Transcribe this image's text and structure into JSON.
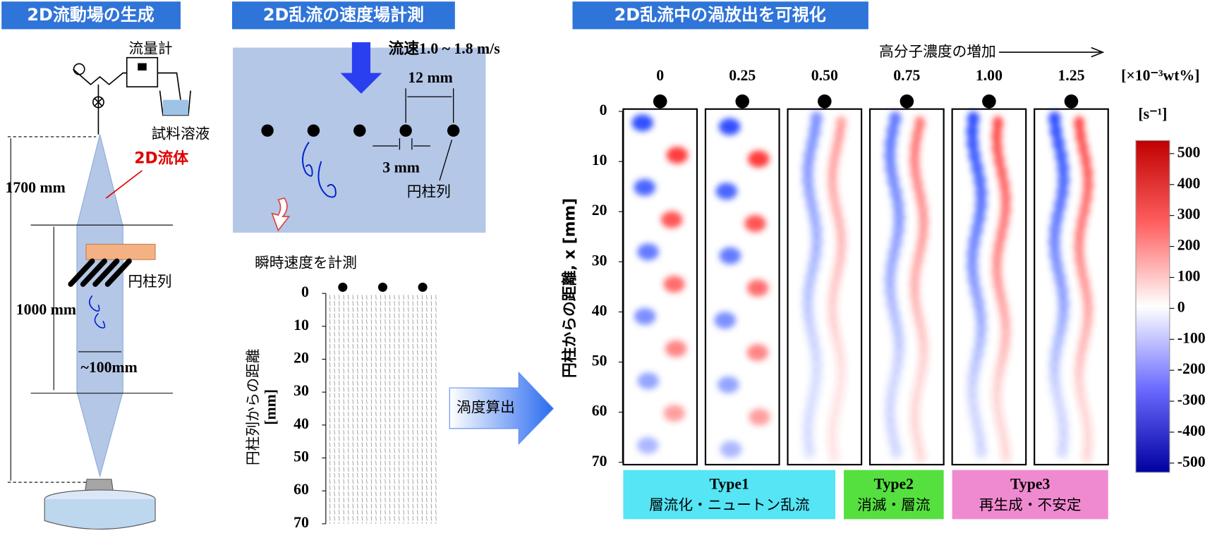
{
  "generation": {
    "title": "2D流動場の生成",
    "flowmeter": "流量計",
    "sample": "試料溶液",
    "fluid": "2D流体",
    "height": "1700 mm",
    "section": "1000 mm",
    "cylinders": "円柱列",
    "width": "~100mm"
  },
  "measurement": {
    "title": "2D乱流の速度場計測",
    "speed": "流速1.0 ~ 1.8 m/s",
    "spacing": "12 mm",
    "diameter": "3 mm",
    "cylinders": "円柱列",
    "caption": "瞬時速度を計測",
    "y_label": [
      "円柱列からの距離",
      "[mm]"
    ],
    "y_ticks": [
      0,
      10,
      20,
      30,
      40,
      50,
      60,
      70
    ],
    "arrow": "渦度算出"
  },
  "visualization": {
    "title": "2D乱流中の渦放出を可視化",
    "trend": "高分子濃度の増加",
    "concentrations": [
      "0",
      "0.25",
      "0.50",
      "0.75",
      "1.00",
      "1.25"
    ],
    "unit": "[×10⁻³wt%]",
    "y_label": "円柱からの距離, x [mm]",
    "y_ticks": [
      0,
      10,
      20,
      30,
      40,
      50,
      60,
      70
    ],
    "colorbar_unit": "[s⁻¹]",
    "colorbar_ticks": [
      500,
      400,
      300,
      200,
      100,
      0,
      -100,
      -200,
      -300,
      -400,
      -500
    ],
    "types": [
      {
        "name": "Type1",
        "desc": "層流化・ニュートン乱流"
      },
      {
        "name": "Type2",
        "desc": "消滅・層流"
      },
      {
        "name": "Type3",
        "desc": "再生成・不安定"
      }
    ]
  }
}
